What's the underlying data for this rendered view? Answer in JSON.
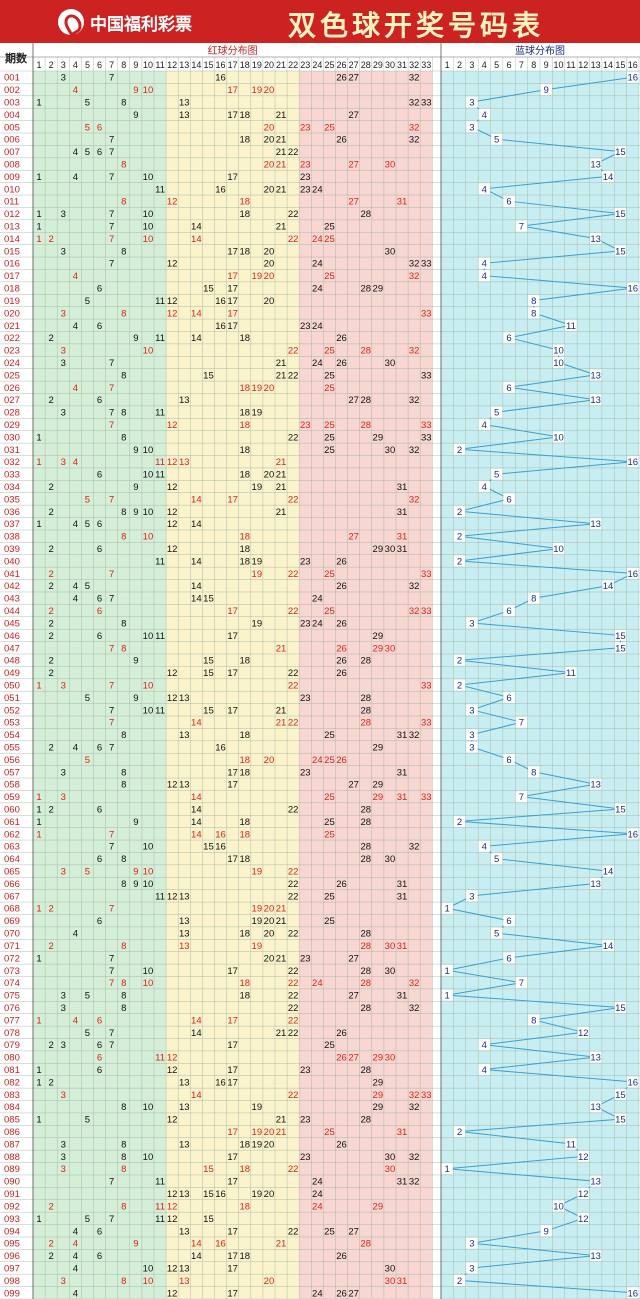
{
  "header": {
    "logo_text": "中国福利彩票",
    "title": "双色球开奖号码表"
  },
  "colors": {
    "zone1": "#d5eed8",
    "zone2": "#fbf3cc",
    "zone3": "#f8d6d2",
    "blue_zone": "#c9eef2",
    "red_num": "#dd2211",
    "blue_num": "#1a2f8a",
    "line": "#3aa0d0",
    "period": "#cc2222"
  },
  "chart_data": {
    "type": "table",
    "column_header_period": "期数",
    "red_section_title": "红球分布图",
    "blue_section_title": "蓝球分布图",
    "red_columns": [
      "1",
      "2",
      "3",
      "4",
      "5",
      "6",
      "7",
      "8",
      "9",
      "10",
      "11",
      "12",
      "13",
      "14",
      "15",
      "16",
      "17",
      "18",
      "19",
      "20",
      "21",
      "22",
      "23",
      "24",
      "25",
      "26",
      "27",
      "28",
      "29",
      "30",
      "31",
      "32",
      "33"
    ],
    "blue_columns": [
      "1",
      "2",
      "3",
      "4",
      "5",
      "6",
      "7",
      "8",
      "9",
      "10",
      "11",
      "12",
      "13",
      "14",
      "15",
      "16"
    ],
    "rows": [
      {
        "p": "001",
        "red": [
          3,
          7,
          16,
          26,
          27,
          32
        ],
        "blue": 16
      },
      {
        "p": "002",
        "red": [
          4,
          9,
          10,
          17,
          19,
          20
        ],
        "blue": 9
      },
      {
        "p": "003",
        "red": [
          1,
          5,
          8,
          13,
          32,
          33
        ],
        "blue": 3
      },
      {
        "p": "004",
        "red": [
          9,
          13,
          17,
          18,
          21,
          27
        ],
        "blue": 4
      },
      {
        "p": "005",
        "red": [
          5,
          6,
          20,
          23,
          25,
          32
        ],
        "blue": 3
      },
      {
        "p": "006",
        "red": [
          7,
          18,
          20,
          21,
          26,
          32
        ],
        "blue": 5
      },
      {
        "p": "007",
        "red": [
          4,
          5,
          6,
          7,
          21,
          22
        ],
        "blue": 15
      },
      {
        "p": "008",
        "red": [
          8,
          20,
          21,
          23,
          27,
          30
        ],
        "blue": 13
      },
      {
        "p": "009",
        "red": [
          1,
          4,
          7,
          10,
          17,
          23
        ],
        "blue": 14
      },
      {
        "p": "010",
        "red": [
          11,
          16,
          20,
          21,
          23,
          24
        ],
        "blue": 4
      },
      {
        "p": "011",
        "red": [
          8,
          12,
          18,
          27,
          31
        ],
        "blue": 6
      },
      {
        "p": "012",
        "red": [
          1,
          3,
          7,
          10,
          18,
          22,
          28
        ],
        "blue": 15
      },
      {
        "p": "013",
        "red": [
          1,
          7,
          10,
          14,
          21,
          25
        ],
        "blue": 7
      },
      {
        "p": "014",
        "red": [
          1,
          2,
          7,
          10,
          14,
          22,
          24,
          25
        ],
        "blue": 13
      },
      {
        "p": "015",
        "red": [
          3,
          8,
          17,
          18,
          20,
          30
        ],
        "blue": 15
      },
      {
        "p": "016",
        "red": [
          7,
          12,
          20,
          24,
          32,
          33
        ],
        "blue": 4
      },
      {
        "p": "017",
        "red": [
          4,
          17,
          19,
          20,
          25,
          32
        ],
        "blue": 4
      },
      {
        "p": "018",
        "red": [
          6,
          15,
          17,
          24,
          28,
          29
        ],
        "blue": 16
      },
      {
        "p": "019",
        "red": [
          5,
          11,
          12,
          16,
          17,
          20
        ],
        "blue": 8
      },
      {
        "p": "020",
        "red": [
          3,
          8,
          12,
          14,
          17,
          33
        ],
        "blue": 8
      },
      {
        "p": "021",
        "red": [
          4,
          6,
          16,
          17,
          23,
          24
        ],
        "blue": 11
      },
      {
        "p": "022",
        "red": [
          2,
          9,
          11,
          14,
          18,
          26
        ],
        "blue": 6
      },
      {
        "p": "023",
        "red": [
          3,
          10,
          22,
          25,
          28,
          32
        ],
        "blue": 10
      },
      {
        "p": "024",
        "red": [
          3,
          7,
          21,
          24,
          26,
          30
        ],
        "blue": 10
      },
      {
        "p": "025",
        "red": [
          8,
          15,
          21,
          22,
          25,
          33
        ],
        "blue": 13
      },
      {
        "p": "026",
        "red": [
          4,
          7,
          18,
          19,
          20,
          25
        ],
        "blue": 6
      },
      {
        "p": "027",
        "red": [
          2,
          6,
          13,
          27,
          28,
          32
        ],
        "blue": 13
      },
      {
        "p": "028",
        "red": [
          3,
          7,
          8,
          11,
          18,
          19
        ],
        "blue": 5
      },
      {
        "p": "029",
        "red": [
          7,
          12,
          18,
          23,
          25,
          28,
          33
        ],
        "blue": 4
      },
      {
        "p": "030",
        "red": [
          1,
          8,
          22,
          25,
          29,
          33
        ],
        "blue": 10
      },
      {
        "p": "031",
        "red": [
          9,
          10,
          18,
          25,
          30,
          32
        ],
        "blue": 2
      },
      {
        "p": "032",
        "red": [
          1,
          3,
          4,
          11,
          12,
          13,
          21
        ],
        "blue": 16
      },
      {
        "p": "033",
        "red": [
          6,
          10,
          11,
          18,
          20,
          21
        ],
        "blue": 5
      },
      {
        "p": "034",
        "red": [
          2,
          9,
          12,
          19,
          21,
          31
        ],
        "blue": 4
      },
      {
        "p": "035",
        "red": [
          5,
          7,
          14,
          17,
          22,
          32
        ],
        "blue": 6
      },
      {
        "p": "036",
        "red": [
          2,
          8,
          9,
          10,
          12,
          21,
          31
        ],
        "blue": 2
      },
      {
        "p": "037",
        "red": [
          1,
          4,
          5,
          6,
          12,
          14
        ],
        "blue": 13
      },
      {
        "p": "038",
        "red": [
          8,
          10,
          18,
          27,
          31
        ],
        "blue": 2
      },
      {
        "p": "039",
        "red": [
          2,
          6,
          12,
          18,
          29,
          30,
          31
        ],
        "blue": 10
      },
      {
        "p": "040",
        "red": [
          11,
          14,
          18,
          19,
          23,
          26
        ],
        "blue": 2
      },
      {
        "p": "041",
        "red": [
          2,
          7,
          19,
          22,
          25,
          33
        ],
        "blue": 16
      },
      {
        "p": "042",
        "red": [
          2,
          4,
          5,
          14,
          26,
          32
        ],
        "blue": 14
      },
      {
        "p": "043",
        "red": [
          4,
          6,
          7,
          14,
          15,
          24
        ],
        "blue": 8
      },
      {
        "p": "044",
        "red": [
          2,
          6,
          17,
          22,
          25,
          32,
          33
        ],
        "blue": 6
      },
      {
        "p": "045",
        "red": [
          2,
          8,
          19,
          23,
          24,
          26
        ],
        "blue": 3
      },
      {
        "p": "046",
        "red": [
          2,
          6,
          10,
          11,
          17,
          29
        ],
        "blue": 15
      },
      {
        "p": "047",
        "red": [
          7,
          8,
          21,
          26,
          29,
          30
        ],
        "blue": 15
      },
      {
        "p": "048",
        "red": [
          2,
          9,
          15,
          18,
          26,
          28
        ],
        "blue": 2
      },
      {
        "p": "049",
        "red": [
          2,
          12,
          15,
          17,
          22,
          26
        ],
        "blue": 11
      },
      {
        "p": "050",
        "red": [
          1,
          3,
          7,
          10,
          22,
          33
        ],
        "blue": 2
      },
      {
        "p": "051",
        "red": [
          5,
          9,
          12,
          13,
          23,
          28
        ],
        "blue": 6
      },
      {
        "p": "052",
        "red": [
          7,
          10,
          11,
          15,
          17,
          21,
          28
        ],
        "blue": 3
      },
      {
        "p": "053",
        "red": [
          7,
          14,
          21,
          22,
          28,
          33
        ],
        "blue": 7
      },
      {
        "p": "054",
        "red": [
          8,
          13,
          18,
          25,
          31,
          32
        ],
        "blue": 3
      },
      {
        "p": "055",
        "red": [
          2,
          4,
          6,
          7,
          16,
          29
        ],
        "blue": 3
      },
      {
        "p": "056",
        "red": [
          5,
          18,
          20,
          24,
          25,
          26
        ],
        "blue": 6
      },
      {
        "p": "057",
        "red": [
          3,
          8,
          17,
          18,
          23,
          31
        ],
        "blue": 8
      },
      {
        "p": "058",
        "red": [
          8,
          12,
          13,
          17,
          27,
          29
        ],
        "blue": 13
      },
      {
        "p": "059",
        "red": [
          1,
          3,
          14,
          25,
          29,
          31,
          33
        ],
        "blue": 7
      },
      {
        "p": "060",
        "red": [
          1,
          2,
          6,
          14,
          22,
          28
        ],
        "blue": 15
      },
      {
        "p": "061",
        "red": [
          1,
          9,
          14,
          18,
          25,
          28
        ],
        "blue": 2
      },
      {
        "p": "062",
        "red": [
          1,
          7,
          14,
          16,
          18,
          25
        ],
        "blue": 16
      },
      {
        "p": "063",
        "red": [
          7,
          10,
          15,
          16,
          28,
          32
        ],
        "blue": 4
      },
      {
        "p": "064",
        "red": [
          6,
          8,
          17,
          18,
          28,
          30
        ],
        "blue": 5
      },
      {
        "p": "065",
        "red": [
          3,
          5,
          9,
          10,
          19,
          22
        ],
        "blue": 14
      },
      {
        "p": "066",
        "red": [
          8,
          9,
          10,
          22,
          26,
          31
        ],
        "blue": 13
      },
      {
        "p": "067",
        "red": [
          11,
          12,
          13,
          22,
          25,
          31
        ],
        "blue": 3
      },
      {
        "p": "068",
        "red": [
          1,
          2,
          7,
          19,
          20,
          21
        ],
        "blue": 1
      },
      {
        "p": "069",
        "red": [
          6,
          13,
          19,
          20,
          21,
          25
        ],
        "blue": 6
      },
      {
        "p": "070",
        "red": [
          4,
          13,
          18,
          20,
          22,
          28
        ],
        "blue": 5
      },
      {
        "p": "071",
        "red": [
          2,
          8,
          13,
          19,
          28,
          30,
          31
        ],
        "blue": 14
      },
      {
        "p": "072",
        "red": [
          1,
          7,
          20,
          21,
          23,
          27
        ],
        "blue": 6
      },
      {
        "p": "073",
        "red": [
          7,
          10,
          17,
          22,
          28,
          30
        ],
        "blue": 1
      },
      {
        "p": "074",
        "red": [
          7,
          8,
          10,
          18,
          22,
          24,
          28,
          32
        ],
        "blue": 7
      },
      {
        "p": "075",
        "red": [
          3,
          5,
          8,
          18,
          22,
          27,
          31
        ],
        "blue": 1
      },
      {
        "p": "076",
        "red": [
          3,
          8,
          22,
          28,
          32
        ],
        "blue": 15
      },
      {
        "p": "077",
        "red": [
          1,
          4,
          6,
          14,
          17,
          22
        ],
        "blue": 8
      },
      {
        "p": "078",
        "red": [
          5,
          7,
          14,
          21,
          22,
          26
        ],
        "blue": 12
      },
      {
        "p": "079",
        "red": [
          2,
          3,
          6,
          7,
          17,
          25
        ],
        "blue": 4
      },
      {
        "p": "080",
        "red": [
          6,
          11,
          12,
          26,
          27,
          29,
          30
        ],
        "blue": 13
      },
      {
        "p": "081",
        "red": [
          1,
          6,
          12,
          17,
          23,
          28
        ],
        "blue": 4
      },
      {
        "p": "082",
        "red": [
          1,
          2,
          13,
          16,
          17,
          29
        ],
        "blue": 16
      },
      {
        "p": "083",
        "red": [
          3,
          14,
          22,
          29,
          32,
          33
        ],
        "blue": 15
      },
      {
        "p": "084",
        "red": [
          8,
          10,
          13,
          19,
          29,
          32
        ],
        "blue": 13
      },
      {
        "p": "085",
        "red": [
          1,
          5,
          12,
          21,
          23,
          28
        ],
        "blue": 15
      },
      {
        "p": "086",
        "red": [
          17,
          19,
          20,
          21,
          25,
          31
        ],
        "blue": 2
      },
      {
        "p": "087",
        "red": [
          3,
          8,
          13,
          18,
          19,
          20,
          26
        ],
        "blue": 11
      },
      {
        "p": "088",
        "red": [
          3,
          8,
          10,
          17,
          23,
          30,
          32
        ],
        "blue": 12
      },
      {
        "p": "089",
        "red": [
          3,
          8,
          15,
          18,
          22,
          30
        ],
        "blue": 1
      },
      {
        "p": "090",
        "red": [
          7,
          11,
          17,
          24,
          31,
          32
        ],
        "blue": 13
      },
      {
        "p": "091",
        "red": [
          12,
          13,
          15,
          16,
          19,
          20,
          24
        ],
        "blue": 12
      },
      {
        "p": "092",
        "red": [
          2,
          8,
          11,
          12,
          18,
          24,
          29
        ],
        "blue": 10
      },
      {
        "p": "093",
        "red": [
          1,
          5,
          7,
          11,
          12,
          15
        ],
        "blue": 12
      },
      {
        "p": "094",
        "red": [
          4,
          6,
          13,
          17,
          22,
          25,
          27
        ],
        "blue": 9
      },
      {
        "p": "095",
        "red": [
          2,
          4,
          9,
          14,
          16,
          21,
          28
        ],
        "blue": 3
      },
      {
        "p": "096",
        "red": [
          2,
          4,
          6,
          14,
          17,
          18,
          26
        ],
        "blue": 13
      },
      {
        "p": "097",
        "red": [
          4,
          10,
          12,
          13,
          17,
          30
        ],
        "blue": 3
      },
      {
        "p": "098",
        "red": [
          3,
          8,
          10,
          13,
          20,
          30,
          31
        ],
        "blue": 2
      },
      {
        "p": "099",
        "red": [
          4,
          12,
          17,
          24,
          26,
          27
        ],
        "blue": 16
      }
    ]
  }
}
